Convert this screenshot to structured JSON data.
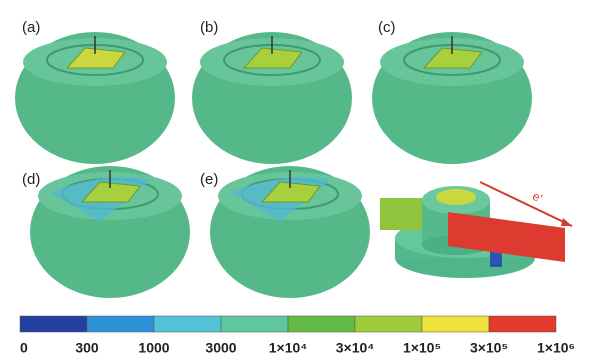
{
  "panels": [
    {
      "label": "(a)"
    },
    {
      "label": "(b)"
    },
    {
      "label": "(c)"
    },
    {
      "label": "(d)"
    },
    {
      "label": "(e)"
    }
  ],
  "annotation": "e'",
  "colorbar": {
    "colors": [
      "#23409e",
      "#2e93d6",
      "#52c3d6",
      "#5fc79d",
      "#63bb45",
      "#9fcb3a",
      "#efe23e",
      "#e23a2e"
    ],
    "labels": [
      "0",
      "300",
      "1000",
      "3000",
      "1×10⁴",
      "3×10⁴",
      "1×10⁵",
      "3×10⁵",
      "1×10⁶"
    ]
  }
}
